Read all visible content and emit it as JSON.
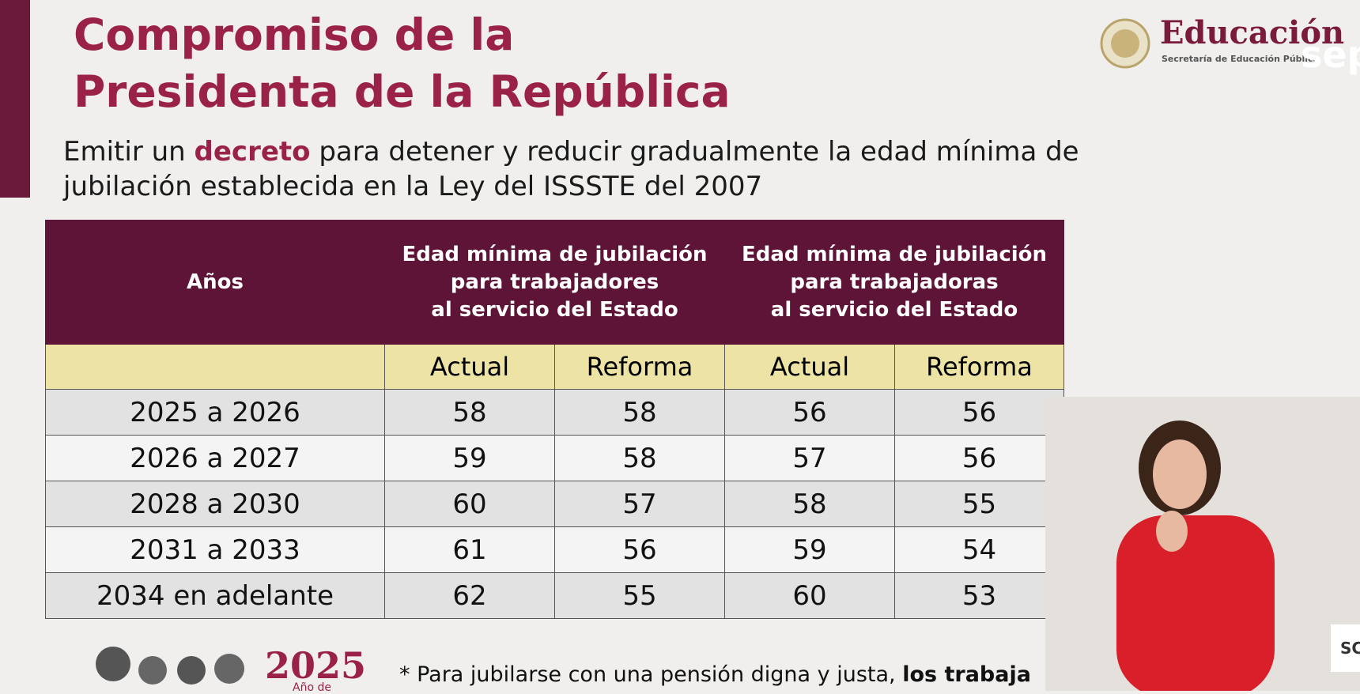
{
  "header": {
    "title": [
      "Compromiso de la",
      "Presidenta de la República"
    ],
    "logo": {
      "name": "Educación",
      "subtitle": "Secretaría de Educación Pública",
      "corner": "sep"
    }
  },
  "intro": {
    "before": "Emitir un ",
    "bold": "decreto",
    "after": " para detener y reducir gradualmente la edad mínima de jubilación establecida en la Ley del ISSSTE del 2007"
  },
  "table": {
    "header": {
      "years": "Años",
      "groups": [
        [
          "Edad mínima de jubilación",
          "para trabajadores",
          "al servicio del Estado"
        ],
        [
          "Edad mínima de jubilación",
          "para trabajadoras",
          "al servicio del Estado"
        ]
      ],
      "sub": [
        "Actual",
        "Reforma",
        "Actual",
        "Reforma"
      ]
    },
    "rows": [
      [
        "2025 a 2026",
        58,
        58,
        56,
        56
      ],
      [
        "2026 a 2027",
        59,
        58,
        57,
        56
      ],
      [
        "2028 a 2030",
        60,
        57,
        58,
        55
      ],
      [
        "2031 a 2033",
        61,
        56,
        59,
        54
      ],
      [
        "2034 en adelante",
        62,
        55,
        60,
        53
      ]
    ]
  },
  "footer": {
    "year": "2025",
    "year_caption": "Año de",
    "note": "* Para jubilarse con una pensión digna y justa, ",
    "note_bold": "los trabaja",
    "badge": "SC"
  }
}
